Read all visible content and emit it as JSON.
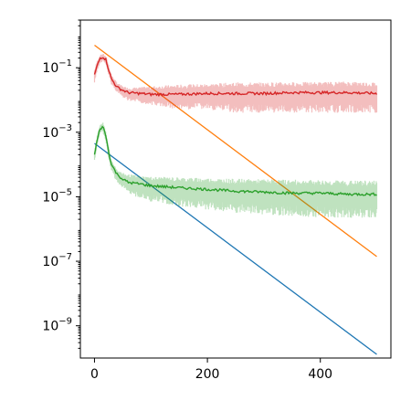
{
  "chart_data": {
    "type": "line",
    "title": "",
    "xlabel": "",
    "ylabel": "",
    "y_scale": "log",
    "grid": false,
    "legend": "none",
    "xlim": [
      -25,
      525
    ],
    "ylim": [
      1e-10,
      3.0
    ],
    "x_ticks": [
      0,
      200,
      400
    ],
    "x_tick_labels": [
      "0",
      "200",
      "400"
    ],
    "y_ticks": [
      1e-09,
      1e-07,
      1e-05,
      0.001,
      0.1
    ],
    "y_tick_labels": [
      {
        "base": "10",
        "exp": "−9"
      },
      {
        "base": "10",
        "exp": "−7"
      },
      {
        "base": "10",
        "exp": "−5"
      },
      {
        "base": "10",
        "exp": "−3"
      },
      {
        "base": "10",
        "exp": "−1"
      }
    ],
    "series": [
      {
        "color": "#1f77b4",
        "style": "line",
        "x": [
          0,
          500
        ],
        "y": [
          0.00045,
          1.3e-10
        ]
      },
      {
        "color": "#ff7f0e",
        "style": "line",
        "x": [
          0,
          500
        ],
        "y": [
          0.5,
          1.4e-07
        ]
      },
      {
        "color": "#d62728",
        "style": "line_with_band",
        "x": [
          0,
          5,
          10,
          15,
          20,
          25,
          30,
          40,
          50,
          60,
          80,
          100,
          150,
          200,
          250,
          300,
          350,
          400,
          450,
          500
        ],
        "y": [
          0.06,
          0.12,
          0.2,
          0.22,
          0.18,
          0.09,
          0.045,
          0.025,
          0.02,
          0.017,
          0.016,
          0.015,
          0.015,
          0.016,
          0.016,
          0.016,
          0.017,
          0.017,
          0.017,
          0.016
        ],
        "band_low": [
          0.03,
          0.08,
          0.14,
          0.16,
          0.12,
          0.06,
          0.03,
          0.017,
          0.012,
          0.009,
          0.008,
          0.007,
          0.005,
          0.005,
          0.004,
          0.004,
          0.004,
          0.004,
          0.004,
          0.004
        ],
        "band_high": [
          0.09,
          0.17,
          0.25,
          0.28,
          0.23,
          0.13,
          0.06,
          0.035,
          0.027,
          0.024,
          0.025,
          0.027,
          0.03,
          0.032,
          0.035,
          0.035,
          0.036,
          0.036,
          0.038,
          0.035
        ]
      },
      {
        "color": "#2ca02c",
        "style": "line_with_band",
        "x": [
          0,
          5,
          10,
          15,
          20,
          25,
          30,
          40,
          50,
          60,
          80,
          100,
          150,
          200,
          250,
          300,
          350,
          400,
          450,
          500
        ],
        "y": [
          0.0002,
          0.0006,
          0.0013,
          0.0015,
          0.0008,
          0.00025,
          0.0001,
          5e-05,
          3.5e-05,
          2.8e-05,
          2.5e-05,
          2.2e-05,
          1.9e-05,
          1.7e-05,
          1.5e-05,
          1.4e-05,
          1.3e-05,
          1.3e-05,
          1.2e-05,
          1.2e-05
        ],
        "band_low": [
          0.00012,
          0.0004,
          0.0009,
          0.001,
          0.0005,
          0.00015,
          6e-05,
          2.8e-05,
          1.8e-05,
          1.2e-05,
          9e-06,
          7e-06,
          5e-06,
          4e-06,
          3e-06,
          2.8e-06,
          2.5e-06,
          2.3e-06,
          2.2e-06,
          2.2e-06
        ],
        "band_high": [
          0.0003,
          0.0008,
          0.0018,
          0.002,
          0.0011,
          0.00035,
          0.00014,
          7e-05,
          5.5e-05,
          5e-05,
          4.5e-05,
          4.2e-05,
          4e-05,
          3.8e-05,
          3.6e-05,
          3.5e-05,
          3.4e-05,
          3.3e-05,
          3.2e-05,
          3.2e-05
        ]
      }
    ]
  }
}
